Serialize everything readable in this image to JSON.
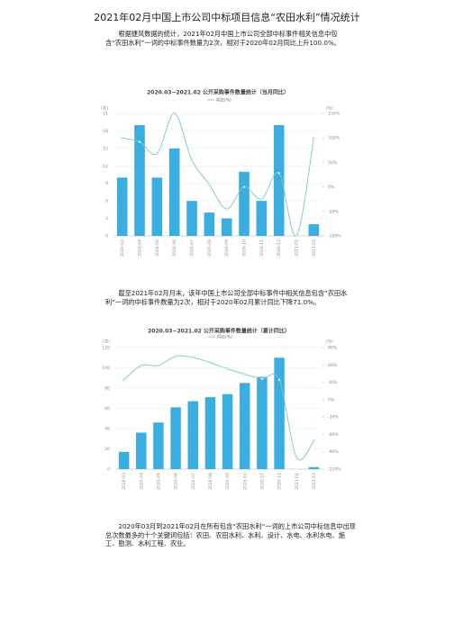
{
  "title": "2021年02月中国上市公司中标项目信息“农田水利”情况统计",
  "paragraphs": [
    "根据捷风数据的统计，2021年02月中国上市公司全部中标事件相关信息中包含“农田水利”一词的中标事件数量为2次，相对于2020年02月同比上升100.0%。",
    "截至2021年02月月末，该年中国上市公司全部中标事件中相关信息包含“农田水利”一词的中标事件数量为2次，相对于2020年02月累计同比下降71.0%。",
    "2020年03月到2021年02月在所有包含“农田水利”一词的上市公司中标信息中出现总次数最多的十个关键词包括：农田、农田水利、水利、设计、水电、水利水电、施工、勘测、水利工程、农业。"
  ],
  "chart_data": [
    {
      "type": "bar",
      "title": "2020.03~2021.02 公开采购事件数量统计（当月同比）",
      "y_label": "(次)",
      "y2_label": "(%)",
      "categories": [
        "2020-03",
        "2020-04",
        "2020-05",
        "2020-06",
        "2020-07",
        "2020-08",
        "2020-09",
        "2020-10",
        "2020-11",
        "2020-12",
        "2021-01",
        "2021-02"
      ],
      "series": [
        {
          "color": "#3aaee0",
          "values": [
            10,
            19,
            10,
            15,
            6,
            4,
            3,
            11,
            6,
            19,
            0,
            2
          ]
        },
        {
          "name": "同比(%)",
          "type": "line",
          "axis": "y2",
          "color": "#7cc6c6",
          "values": [
            100,
            92,
            68,
            150,
            55,
            5,
            -45,
            0,
            -25,
            28,
            -100,
            100
          ]
        }
      ],
      "ylim": [
        0,
        21
      ],
      "yticks": [
        0,
        3,
        6,
        9,
        12,
        15,
        18,
        21
      ],
      "y2lim": [
        -100,
        150
      ],
      "y2ticks": [
        {
          "value": -100,
          "label": "-100%"
        },
        {
          "value": -50,
          "label": "-50%"
        },
        {
          "value": 0,
          "label": "0%"
        },
        {
          "value": 50,
          "label": "50%"
        },
        {
          "value": 100,
          "label": "100%"
        },
        {
          "value": 150,
          "label": "150%"
        }
      ]
    },
    {
      "type": "bar",
      "title": "2020.03~2021.02 公开采购事件数量统计（累计同比）",
      "y_label": "(次)",
      "y2_label": "(%)",
      "categories": [
        "2020-03",
        "2020-04",
        "2020-05",
        "2020-06",
        "2020-07",
        "2020-08",
        "2020-09",
        "2020-10",
        "2020-11",
        "2020-12",
        "2021-01",
        "2021-02"
      ],
      "series": [
        {
          "color": "#3aaee0",
          "values": [
            17,
            36,
            46,
            61,
            67,
            71,
            74,
            85,
            91,
            110,
            0,
            2
          ]
        },
        {
          "name": "同比(%)",
          "type": "line",
          "axis": "y2",
          "color": "#7cc6c6",
          "values": [
            34,
            59,
            59,
            75,
            73,
            64,
            53,
            44,
            36,
            34,
            -100,
            -71
          ]
        }
      ],
      "ylim": [
        0,
        120
      ],
      "yticks": [
        0,
        20,
        40,
        60,
        80,
        100,
        120
      ],
      "y2lim": [
        -120,
        90
      ],
      "y2ticks": [
        {
          "value": -120,
          "label": "-120%"
        },
        {
          "value": -90,
          "label": "-90%"
        },
        {
          "value": -60,
          "label": "-60%"
        },
        {
          "value": -30,
          "label": "-30%"
        },
        {
          "value": 0,
          "label": "0%"
        },
        {
          "value": 30,
          "label": "30%"
        },
        {
          "value": 60,
          "label": "60%"
        },
        {
          "value": 90,
          "label": "90%"
        }
      ]
    }
  ]
}
